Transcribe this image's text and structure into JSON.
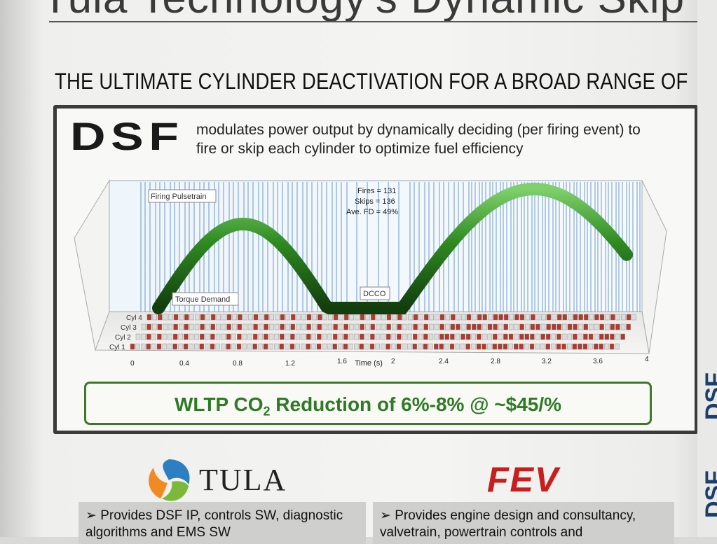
{
  "poster": {
    "top_title": "Tula Technology's Dynamic Skip F",
    "subheading": "THE ULTIMATE CYLINDER DEACTIVATION FOR A BROAD RANGE OF",
    "logo_text": "DSF",
    "description": "modulates power output by dynamically deciding (per firing event) to fire or skip each cylinder to optimize fuel efficiency",
    "result_prefix": "WLTP CO",
    "result_subscript": "2",
    "result_suffix": " Reduction of 6%-8% @ ~$45/%",
    "tula_name": "TULA",
    "fev_name": "FEV",
    "tula_point": "➢ Provides DSF IP, controls SW, diagnostic algorithms and EMS SW",
    "fev_point": "➢ Provides engine design and consultancy, valvetrain, powertrain controls and",
    "side_text": "DSF"
  },
  "chart": {
    "label_firing": "Firing Pulsetrain",
    "label_torque": "Torque Demand",
    "label_dcco": "DCCO",
    "stats": [
      "Fires = 131",
      "Skips = 136",
      "Ave. FD = 49%"
    ],
    "cylinders": [
      "Cyl 4",
      "Cyl 3",
      "Cyl 2",
      "Cyl 1"
    ],
    "x_ticks": [
      "0",
      "0.4",
      "0.8",
      "1.2",
      "1.6",
      "2",
      "2.4",
      "2.8",
      "3.2",
      "3.6",
      "4"
    ],
    "x_label": "Time (s)",
    "colors": {
      "torque": "#2f7d22",
      "fire": "#b03a2e",
      "skip": "#dcdcdc",
      "pulse": "#3f78b8"
    }
  }
}
